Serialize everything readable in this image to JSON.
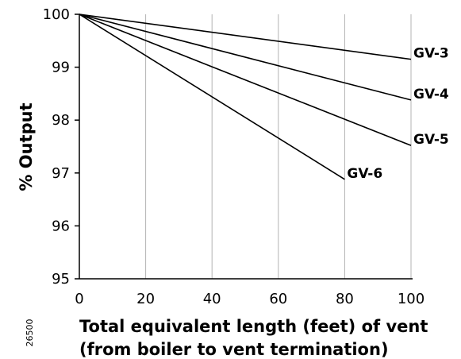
{
  "chart_data": {
    "type": "line",
    "title": "",
    "xlabel_lines": [
      "Total equivalent length (feet) of vent",
      "(from boiler to vent termination)"
    ],
    "ylabel": "% Output",
    "xlim": [
      0,
      115
    ],
    "ylim": [
      95,
      100
    ],
    "x_ticks": [
      0,
      20,
      40,
      60,
      80,
      100
    ],
    "y_ticks": [
      95,
      96,
      97,
      98,
      99,
      100
    ],
    "x_gridlines": [
      20,
      40,
      60,
      80,
      100
    ],
    "grid": "vertical",
    "series": [
      {
        "name": "GV-3",
        "x": [
          0,
          100
        ],
        "y": [
          100,
          99.15
        ]
      },
      {
        "name": "GV-4",
        "x": [
          0,
          100
        ],
        "y": [
          100,
          98.38
        ]
      },
      {
        "name": "GV-5",
        "x": [
          0,
          100
        ],
        "y": [
          100,
          97.52
        ]
      },
      {
        "name": "GV-6",
        "x": [
          0,
          80
        ],
        "y": [
          100,
          96.88
        ]
      }
    ],
    "figure_id": "26500"
  }
}
